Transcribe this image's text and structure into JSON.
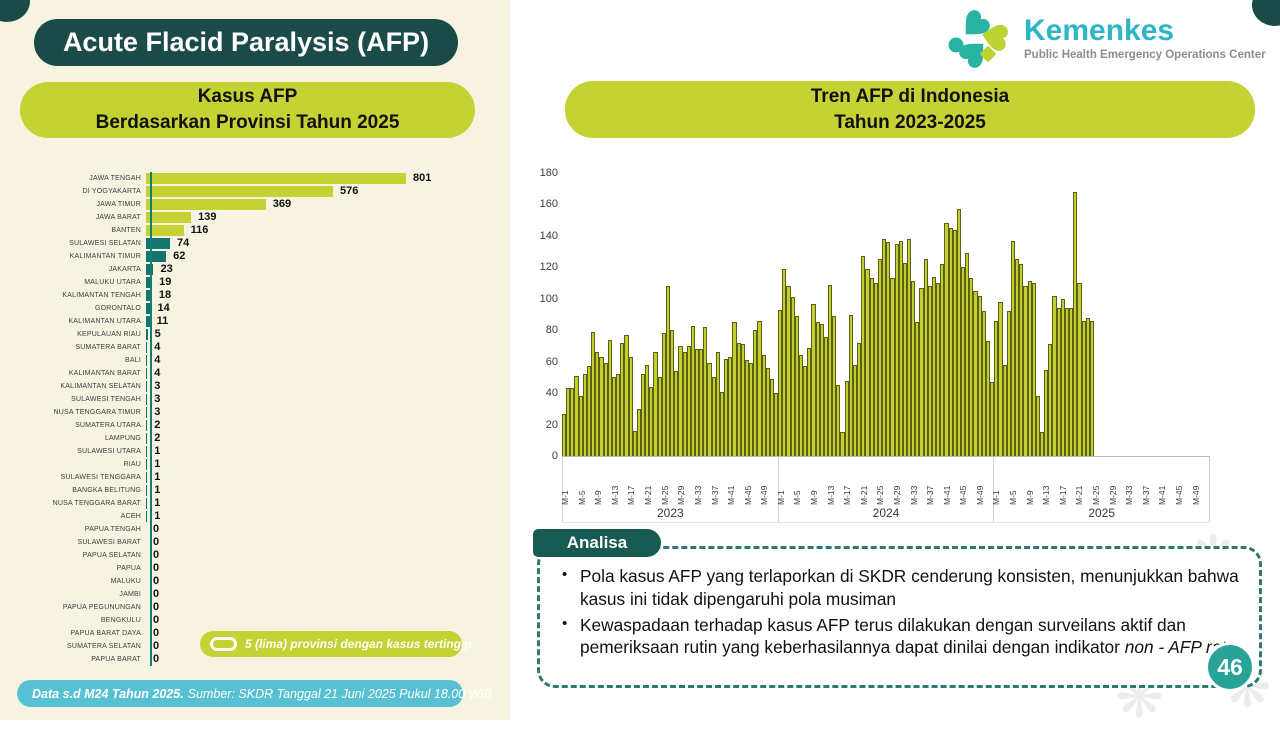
{
  "header": {
    "title": "Acute Flacid Paralysis (AFP)"
  },
  "logo": {
    "brand": "Kemenkes",
    "subtitle": "Public Health Emergency Operations Center"
  },
  "left_panel": {
    "subtitle_line1": "Kasus AFP",
    "subtitle_line2": "Berdasarkan Provinsi Tahun 2025",
    "legend": "5 (lima) provinsi dengan kasus tertinggi",
    "footer_bold": "Data s.d M24 Tahun 2025.",
    "footer_text": "Sumber: SKDR Tanggal 21 Juni 2025 Pukul 18.00 WIB"
  },
  "right_panel": {
    "title_line1": "Tren AFP di Indonesia",
    "title_line2": "Tahun 2023-2025"
  },
  "analisa": {
    "label": "Analisa",
    "bullets": [
      {
        "text": "Pola kasus AFP yang terlaporkan di SKDR cenderung konsisten, menunjukkan bahwa kasus ini tidak dipengaruhi pola musiman",
        "italic": ""
      },
      {
        "text": "Kewaspadaan terhadap kasus AFP terus dilakukan dengan surveilans aktif dan pemeriksaan rutin yang keberhasilannya dapat dinilai dengan indikator ",
        "italic": "non - AFP rate"
      }
    ]
  },
  "page_number": "46",
  "colors": {
    "dark_teal": "#1a4b48",
    "lime": "#c4d233",
    "teal_bar": "#10766e",
    "trend_bar": "#c2d02e",
    "turquoise_footer": "#57c1d3",
    "brand_turquoise": "#2db6c6",
    "analisa_border": "#2b7b72",
    "page_circle": "#27a497"
  },
  "chart_data": [
    {
      "type": "bar",
      "orientation": "horizontal",
      "title": "Kasus AFP Berdasarkan Provinsi Tahun 2025",
      "highlight_count": 5,
      "highlight_color": "#c4d233",
      "base_color": "#10766e",
      "legend": "5 (lima) provinsi dengan kasus tertinggi",
      "categories": [
        "JAWA TENGAH",
        "DI YOGYAKARTA",
        "JAWA TIMUR",
        "JAWA BARAT",
        "BANTEN",
        "SULAWESI SELATAN",
        "KALIMANTAN TIMUR",
        "JAKARTA",
        "MALUKU UTARA",
        "KALIMANTAN TENGAH",
        "GORONTALO",
        "KALIMANTAN UTARA",
        "KEPULAUAN RIAU",
        "SUMATERA BARAT",
        "BALI",
        "KALIMANTAN BARAT",
        "KALIMANTAN SELATAN",
        "SULAWESI TENGAH",
        "NUSA TENGGARA TIMUR",
        "SUMATERA UTARA",
        "LAMPUNG",
        "SULAWESI UTARA",
        "RIAU",
        "SULAWESI TENGGARA",
        "BANGKA BELITUNG",
        "NUSA TENGGARA BARAT",
        "ACEH",
        "PAPUA TENGAH",
        "SULAWESI BARAT",
        "PAPUA SELATAN",
        "PAPUA",
        "MALUKU",
        "JAMBI",
        "PAPUA PEGUNUNGAN",
        "BENGKULU",
        "PAPUA BARAT DAYA",
        "SUMATERA SELATAN",
        "PAPUA BARAT"
      ],
      "values": [
        801,
        576,
        369,
        139,
        116,
        74,
        62,
        23,
        19,
        18,
        14,
        11,
        5,
        4,
        4,
        4,
        3,
        3,
        3,
        2,
        2,
        1,
        1,
        1,
        1,
        1,
        1,
        0,
        0,
        0,
        0,
        0,
        0,
        0,
        0,
        0,
        0,
        0
      ]
    },
    {
      "type": "bar",
      "orientation": "vertical",
      "title": "Tren AFP di Indonesia Tahun 2023-2025",
      "ylim": [
        0,
        180
      ],
      "yticks": [
        0,
        20,
        40,
        60,
        80,
        100,
        120,
        140,
        160,
        180
      ],
      "x_unit": "epidemiological week (M-n)",
      "tick_every": 4,
      "weeks_per_year": 52,
      "bar_color": "#c2d02e",
      "grid": false,
      "series": [
        {
          "name": "2023",
          "values": [
            27,
            43,
            43,
            51,
            38,
            52,
            57,
            79,
            66,
            63,
            59,
            74,
            50,
            52,
            72,
            77,
            63,
            16,
            30,
            52,
            58,
            44,
            66,
            50,
            78,
            108,
            80,
            54,
            70,
            66,
            70,
            83,
            68,
            68,
            82,
            59,
            50,
            66,
            41,
            62,
            63,
            85,
            72,
            71,
            61,
            59,
            80,
            86,
            64,
            56,
            49,
            40
          ]
        },
        {
          "name": "2024",
          "values": [
            93,
            119,
            108,
            101,
            89,
            64,
            57,
            69,
            97,
            85,
            84,
            76,
            109,
            89,
            45,
            15,
            48,
            90,
            58,
            72,
            127,
            119,
            113,
            110,
            125,
            138,
            136,
            113,
            135,
            137,
            123,
            138,
            111,
            85,
            107,
            125,
            108,
            114,
            110,
            122,
            148,
            145,
            144,
            157,
            120,
            129,
            113,
            105,
            102,
            92,
            73,
            47
          ]
        },
        {
          "name": "2025",
          "values": [
            86,
            98,
            58,
            92,
            137,
            125,
            122,
            108,
            111,
            110,
            38,
            15,
            55,
            71,
            102,
            94,
            100,
            94,
            94,
            168,
            110,
            86,
            88,
            86
          ]
        }
      ]
    }
  ]
}
